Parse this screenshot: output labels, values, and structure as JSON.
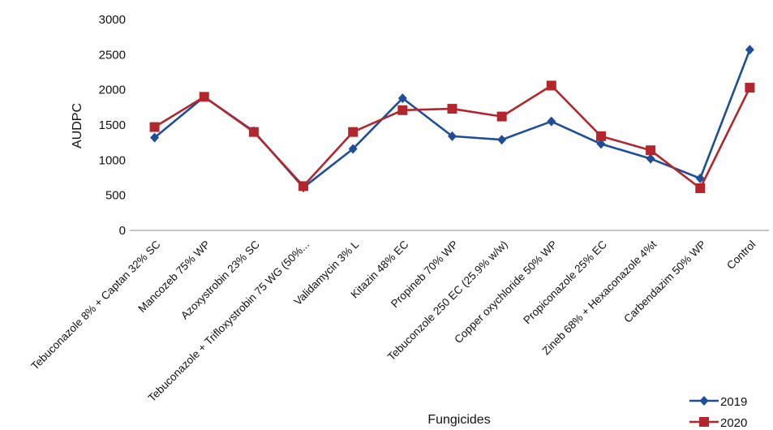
{
  "chart_data": {
    "type": "line",
    "xlabel": "Fungicides",
    "ylabel": "AUDPC",
    "ylim": [
      0,
      3000
    ],
    "yticks": [
      "0",
      "500",
      "1000",
      "1500",
      "2000",
      "2500",
      "3000"
    ],
    "grid": false,
    "legend_position": "bottom-right",
    "categories": [
      "Tebuconazole 8% + Captan 32% SC",
      "Mancozeb 75% WP",
      "Azoxystrobin 23% SC",
      "Tebuconazole + Trifloxystrobin 75 WG (50%...",
      "Validamycin 3% L",
      "Kitazin 48% EC",
      "Propineb 70% WP",
      "Tebuconzole 250 EC (25.9% w/w)",
      "Copper oxychloride 50% WP",
      "Propiconazole 25% EC",
      "Zineb 68% + Hexaconazole 4%t",
      "Carbendazim 50% WP",
      "Control"
    ],
    "series": [
      {
        "name": "2019",
        "color": "#1f4e99",
        "marker": "diamond",
        "values": [
          1320,
          1900,
          1410,
          610,
          1160,
          1880,
          1340,
          1290,
          1550,
          1230,
          1020,
          740,
          2570
        ]
      },
      {
        "name": "2020",
        "color": "#b3262e",
        "marker": "square",
        "values": [
          1470,
          1900,
          1400,
          630,
          1400,
          1710,
          1730,
          1620,
          2060,
          1340,
          1140,
          600,
          2030
        ]
      }
    ]
  }
}
